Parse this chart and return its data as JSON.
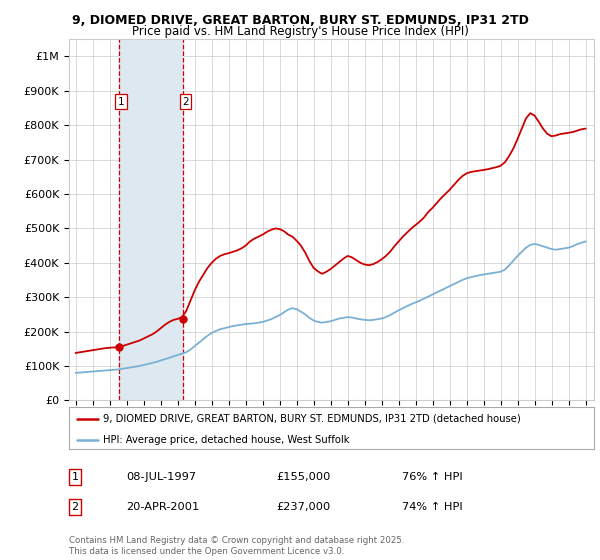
{
  "title1": "9, DIOMED DRIVE, GREAT BARTON, BURY ST. EDMUNDS, IP31 2TD",
  "title2": "Price paid vs. HM Land Registry's House Price Index (HPI)",
  "ylabel_ticks": [
    "£0",
    "£100K",
    "£200K",
    "£300K",
    "£400K",
    "£500K",
    "£600K",
    "£700K",
    "£800K",
    "£900K",
    "£1M"
  ],
  "ytick_vals": [
    0,
    100000,
    200000,
    300000,
    400000,
    500000,
    600000,
    700000,
    800000,
    900000,
    1000000
  ],
  "xlim": [
    1994.6,
    2025.5
  ],
  "ylim": [
    0,
    1050000
  ],
  "legend_line1": "9, DIOMED DRIVE, GREAT BARTON, BURY ST. EDMUNDS, IP31 2TD (detached house)",
  "legend_line2": "HPI: Average price, detached house, West Suffolk",
  "sale1_date": "08-JUL-1997",
  "sale1_price": "£155,000",
  "sale1_hpi": "76% ↑ HPI",
  "sale2_date": "20-APR-2001",
  "sale2_price": "£237,000",
  "sale2_hpi": "74% ↑ HPI",
  "footnote": "Contains HM Land Registry data © Crown copyright and database right 2025.\nThis data is licensed under the Open Government Licence v3.0.",
  "sale1_year": 1997.52,
  "sale2_year": 2001.3,
  "sale1_price_val": 155000,
  "sale2_price_val": 237000,
  "red_color": "#cc0000",
  "blue_color": "#7ab0d4",
  "shade_color": "#dde8f0",
  "grid_color": "#cccccc",
  "vline_color": "#cc0000",
  "bg_color": "#ffffff",
  "hpi_years": [
    1995.0,
    1995.25,
    1995.5,
    1995.75,
    1996.0,
    1996.25,
    1996.5,
    1996.75,
    1997.0,
    1997.25,
    1997.5,
    1997.75,
    1998.0,
    1998.25,
    1998.5,
    1998.75,
    1999.0,
    1999.25,
    1999.5,
    1999.75,
    2000.0,
    2000.25,
    2000.5,
    2000.75,
    2001.0,
    2001.25,
    2001.5,
    2001.75,
    2002.0,
    2002.25,
    2002.5,
    2002.75,
    2003.0,
    2003.25,
    2003.5,
    2003.75,
    2004.0,
    2004.25,
    2004.5,
    2004.75,
    2005.0,
    2005.25,
    2005.5,
    2005.75,
    2006.0,
    2006.25,
    2006.5,
    2006.75,
    2007.0,
    2007.25,
    2007.5,
    2007.75,
    2008.0,
    2008.25,
    2008.5,
    2008.75,
    2009.0,
    2009.25,
    2009.5,
    2009.75,
    2010.0,
    2010.25,
    2010.5,
    2010.75,
    2011.0,
    2011.25,
    2011.5,
    2011.75,
    2012.0,
    2012.25,
    2012.5,
    2012.75,
    2013.0,
    2013.25,
    2013.5,
    2013.75,
    2014.0,
    2014.25,
    2014.5,
    2014.75,
    2015.0,
    2015.25,
    2015.5,
    2015.75,
    2016.0,
    2016.25,
    2016.5,
    2016.75,
    2017.0,
    2017.25,
    2017.5,
    2017.75,
    2018.0,
    2018.25,
    2018.5,
    2018.75,
    2019.0,
    2019.25,
    2019.5,
    2019.75,
    2020.0,
    2020.25,
    2020.5,
    2020.75,
    2021.0,
    2021.25,
    2021.5,
    2021.75,
    2022.0,
    2022.25,
    2022.5,
    2022.75,
    2023.0,
    2023.25,
    2023.5,
    2023.75,
    2024.0,
    2024.25,
    2024.5,
    2024.75,
    2025.0
  ],
  "hpi_values": [
    80000,
    81000,
    82000,
    83000,
    84000,
    85000,
    86000,
    87000,
    88000,
    89000,
    90000,
    92000,
    94000,
    96000,
    98000,
    100000,
    103000,
    106000,
    109000,
    112000,
    116000,
    120000,
    124000,
    128000,
    132000,
    136000,
    140000,
    148000,
    158000,
    168000,
    178000,
    188000,
    196000,
    202000,
    207000,
    210000,
    213000,
    216000,
    218000,
    220000,
    222000,
    223000,
    224000,
    226000,
    228000,
    232000,
    236000,
    242000,
    248000,
    256000,
    264000,
    268000,
    265000,
    258000,
    250000,
    240000,
    232000,
    228000,
    226000,
    228000,
    230000,
    234000,
    238000,
    240000,
    242000,
    241000,
    238000,
    236000,
    234000,
    233000,
    234000,
    236000,
    238000,
    242000,
    248000,
    255000,
    262000,
    268000,
    274000,
    280000,
    285000,
    290000,
    296000,
    302000,
    308000,
    314000,
    320000,
    326000,
    332000,
    338000,
    344000,
    350000,
    355000,
    358000,
    361000,
    364000,
    366000,
    368000,
    370000,
    372000,
    374000,
    380000,
    392000,
    406000,
    420000,
    432000,
    444000,
    452000,
    455000,
    452000,
    448000,
    444000,
    440000,
    438000,
    440000,
    442000,
    444000,
    448000,
    454000,
    458000,
    462000
  ],
  "red_years": [
    1995.0,
    1995.25,
    1995.5,
    1995.75,
    1996.0,
    1996.25,
    1996.5,
    1996.75,
    1997.0,
    1997.25,
    1997.5,
    1997.75,
    1998.0,
    1998.25,
    1998.5,
    1998.75,
    1999.0,
    1999.25,
    1999.5,
    1999.75,
    2000.0,
    2000.25,
    2000.5,
    2000.75,
    2001.0,
    2001.25,
    2001.5,
    2001.75,
    2002.0,
    2002.25,
    2002.5,
    2002.75,
    2003.0,
    2003.25,
    2003.5,
    2003.75,
    2004.0,
    2004.25,
    2004.5,
    2004.75,
    2005.0,
    2005.25,
    2005.5,
    2005.75,
    2006.0,
    2006.25,
    2006.5,
    2006.75,
    2007.0,
    2007.25,
    2007.5,
    2007.75,
    2008.0,
    2008.25,
    2008.5,
    2008.75,
    2009.0,
    2009.25,
    2009.5,
    2009.75,
    2010.0,
    2010.25,
    2010.5,
    2010.75,
    2011.0,
    2011.25,
    2011.5,
    2011.75,
    2012.0,
    2012.25,
    2012.5,
    2012.75,
    2013.0,
    2013.25,
    2013.5,
    2013.75,
    2014.0,
    2014.25,
    2014.5,
    2014.75,
    2015.0,
    2015.25,
    2015.5,
    2015.75,
    2016.0,
    2016.25,
    2016.5,
    2016.75,
    2017.0,
    2017.25,
    2017.5,
    2017.75,
    2018.0,
    2018.25,
    2018.5,
    2018.75,
    2019.0,
    2019.25,
    2019.5,
    2019.75,
    2020.0,
    2020.25,
    2020.5,
    2020.75,
    2021.0,
    2021.25,
    2021.5,
    2021.75,
    2022.0,
    2022.25,
    2022.5,
    2022.75,
    2023.0,
    2023.25,
    2023.5,
    2023.75,
    2024.0,
    2024.25,
    2024.5,
    2024.75,
    2025.0
  ],
  "red_values": [
    138000,
    140000,
    142000,
    144000,
    146000,
    148000,
    150000,
    152000,
    153000,
    154000,
    155000,
    158000,
    162000,
    166000,
    170000,
    174000,
    180000,
    186000,
    192000,
    200000,
    210000,
    220000,
    228000,
    234000,
    237000,
    242000,
    260000,
    290000,
    320000,
    345000,
    365000,
    385000,
    400000,
    412000,
    420000,
    425000,
    428000,
    432000,
    436000,
    442000,
    450000,
    462000,
    470000,
    476000,
    482000,
    490000,
    496000,
    500000,
    498000,
    492000,
    482000,
    476000,
    464000,
    450000,
    430000,
    405000,
    385000,
    375000,
    368000,
    374000,
    382000,
    392000,
    402000,
    412000,
    420000,
    416000,
    408000,
    400000,
    395000,
    393000,
    396000,
    402000,
    410000,
    420000,
    432000,
    448000,
    462000,
    476000,
    488000,
    500000,
    510000,
    520000,
    532000,
    548000,
    560000,
    574000,
    588000,
    600000,
    612000,
    626000,
    640000,
    652000,
    660000,
    664000,
    666000,
    668000,
    670000,
    672000,
    675000,
    678000,
    682000,
    692000,
    710000,
    732000,
    760000,
    790000,
    820000,
    835000,
    828000,
    810000,
    790000,
    775000,
    768000,
    770000,
    774000,
    776000,
    778000,
    780000,
    784000,
    788000,
    790000
  ]
}
